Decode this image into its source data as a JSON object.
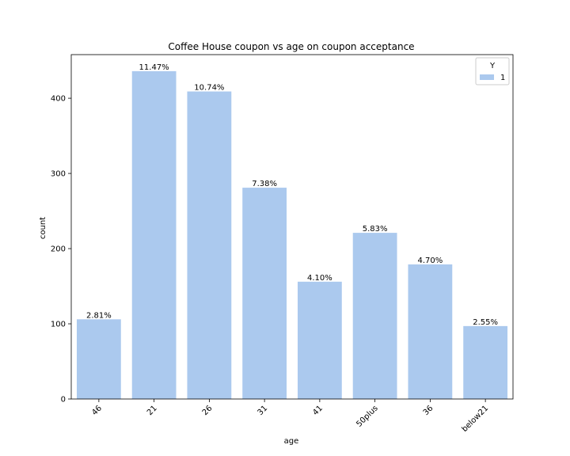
{
  "chart_data": {
    "type": "bar",
    "title": "Coffee House coupon vs age on coupon acceptance",
    "xlabel": "age",
    "ylabel": "count",
    "categories": [
      "46",
      "21",
      "26",
      "31",
      "41",
      "50plus",
      "36",
      "below21"
    ],
    "series": [
      {
        "name": "1",
        "values": [
          106,
          436,
          409,
          281,
          156,
          221,
          179,
          97
        ],
        "labels": [
          "2.81%",
          "11.47%",
          "10.74%",
          "7.38%",
          "4.10%",
          "5.83%",
          "4.70%",
          "2.55%"
        ],
        "color": "#abc9ee"
      }
    ],
    "yticks": [
      0,
      100,
      200,
      300,
      400
    ],
    "ylim": [
      0,
      458
    ],
    "grid": false,
    "legend": {
      "title": "Y",
      "entries": [
        "1"
      ],
      "placement": "top-right"
    }
  }
}
